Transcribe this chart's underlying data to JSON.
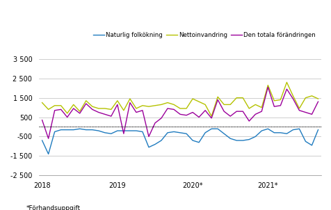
{
  "footnote": "*Förhandsuppgift",
  "legend": [
    "Naturlig folkökning",
    "Nettoinvandring",
    "Den totala förändringen"
  ],
  "colors": [
    "#1f7bbf",
    "#b5c200",
    "#9b009b"
  ],
  "ylim": [
    -2500,
    3500
  ],
  "xtick_positions": [
    0,
    12,
    24,
    36
  ],
  "xtick_labels": [
    "2018",
    "2019",
    "2020*",
    "2021*"
  ],
  "naturlig": [
    -700,
    -1400,
    -250,
    -150,
    -150,
    -150,
    -100,
    -150,
    -150,
    -200,
    -300,
    -350,
    -200,
    -200,
    -200,
    -200,
    -250,
    -1050,
    -900,
    -700,
    -300,
    -250,
    -300,
    -350,
    -700,
    -800,
    -300,
    -100,
    -100,
    -350,
    -600,
    -700,
    -700,
    -650,
    -500,
    -200,
    -100,
    -300,
    -300,
    -350,
    -150,
    -100,
    -750,
    -950,
    -150
  ],
  "nettoinvandring": [
    1250,
    900,
    1100,
    1100,
    700,
    1150,
    800,
    1350,
    1050,
    950,
    950,
    900,
    1350,
    850,
    1450,
    950,
    1100,
    1050,
    1100,
    1150,
    1250,
    1150,
    950,
    950,
    1450,
    1300,
    1150,
    550,
    1550,
    1150,
    1150,
    1500,
    1500,
    950,
    1150,
    1000,
    2150,
    1350,
    1400,
    2300,
    1600,
    950,
    1500,
    1600,
    1450
  ],
  "total": [
    350,
    -600,
    850,
    900,
    500,
    950,
    700,
    1200,
    900,
    750,
    650,
    550,
    1150,
    -350,
    1250,
    750,
    850,
    -500,
    200,
    450,
    950,
    900,
    650,
    600,
    750,
    500,
    850,
    450,
    1400,
    800,
    550,
    800,
    800,
    300,
    650,
    800,
    2050,
    1050,
    1100,
    1950,
    1450,
    850,
    750,
    650,
    1300
  ]
}
